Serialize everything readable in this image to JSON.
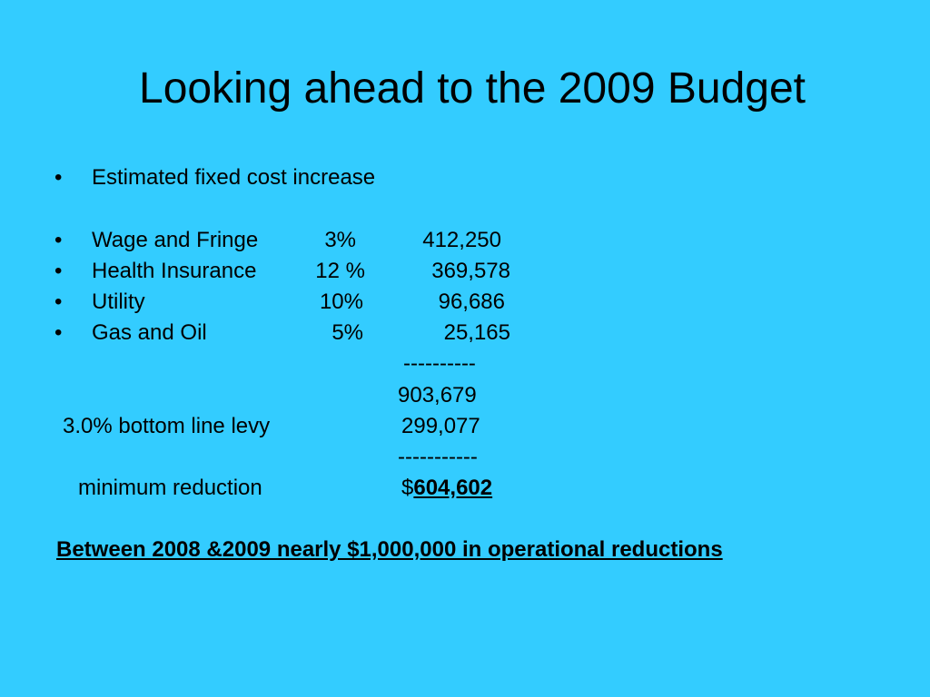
{
  "slide": {
    "title": "Looking ahead to the 2009 Budget",
    "bullet_glyph": "•",
    "intro_bullet": "Estimated fixed cost increase",
    "cost_rows": [
      {
        "label": "Wage and Fringe",
        "percent": "3%",
        "amount": "412,250"
      },
      {
        "label": "Health Insurance",
        "percent": "12 %",
        "amount": "369,578"
      },
      {
        "label": "Utility",
        "percent": "10%",
        "amount": "96,686"
      },
      {
        "label": "Gas and Oil",
        "percent": "5%",
        "amount": "25,165"
      }
    ],
    "separator_1": "----------",
    "subtotal": "903,679",
    "levy_label": "3.0% bottom line levy",
    "levy_amount": "299,077",
    "separator_2": "-----------",
    "reduction_label": "minimum  reduction",
    "reduction_currency": "$",
    "reduction_amount": "604,602",
    "summary": "Between 2008 &2009 nearly $1,000,000 in operational reductions"
  }
}
